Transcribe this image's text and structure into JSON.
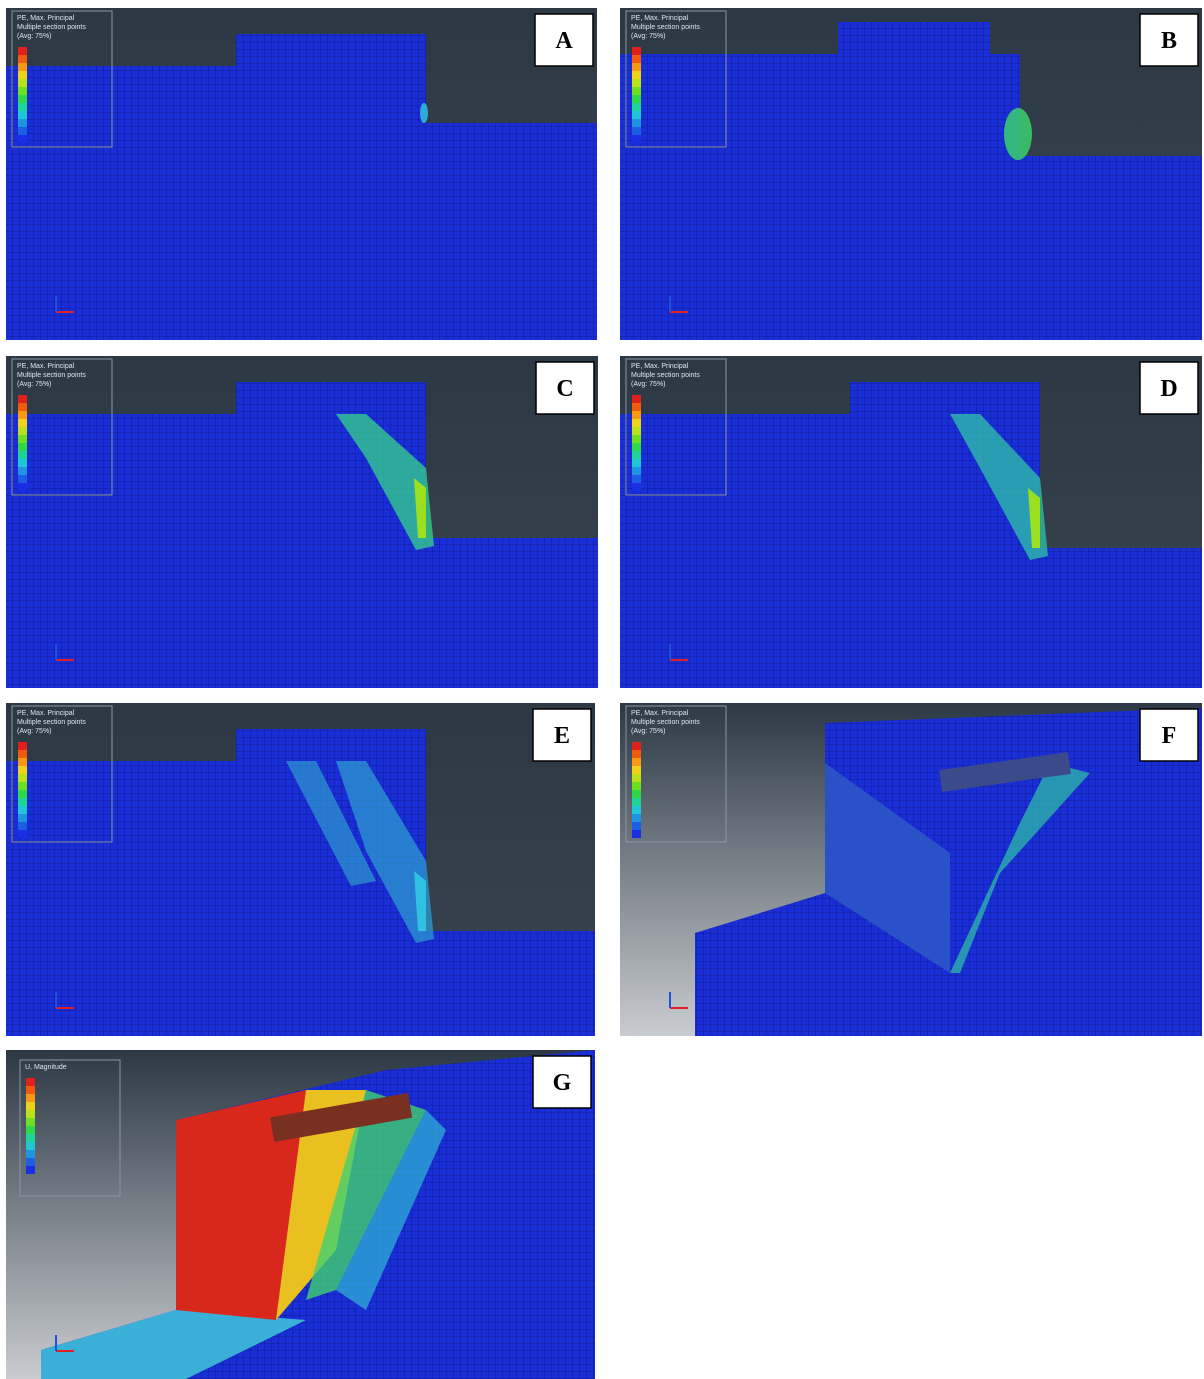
{
  "panels": [
    {
      "label": "A",
      "legend": {
        "title": "PE, Max. Principal",
        "subtitle": "Multiple section points",
        "average": "(Avg: 75%)"
      }
    },
    {
      "label": "B",
      "legend": {
        "title": "PE, Max. Principal",
        "subtitle": "Multiple section points",
        "average": "(Avg: 75%)"
      }
    },
    {
      "label": "C",
      "legend": {
        "title": "PE, Max. Principal",
        "subtitle": "Multiple section points",
        "average": "(Avg: 75%)"
      }
    },
    {
      "label": "D",
      "legend": {
        "title": "PE, Max. Principal",
        "subtitle": "Multiple section points",
        "average": "(Avg: 75%)"
      }
    },
    {
      "label": "E",
      "legend": {
        "title": "PE, Max. Principal",
        "subtitle": "Multiple section points",
        "average": "(Avg: 75%)"
      }
    },
    {
      "label": "F",
      "legend": {
        "title": "PE, Max. Principal",
        "subtitle": "Multiple section points",
        "average": "(Avg: 75%)"
      }
    },
    {
      "label": "G",
      "legend": {
        "title": "U, Magnitude"
      }
    }
  ]
}
